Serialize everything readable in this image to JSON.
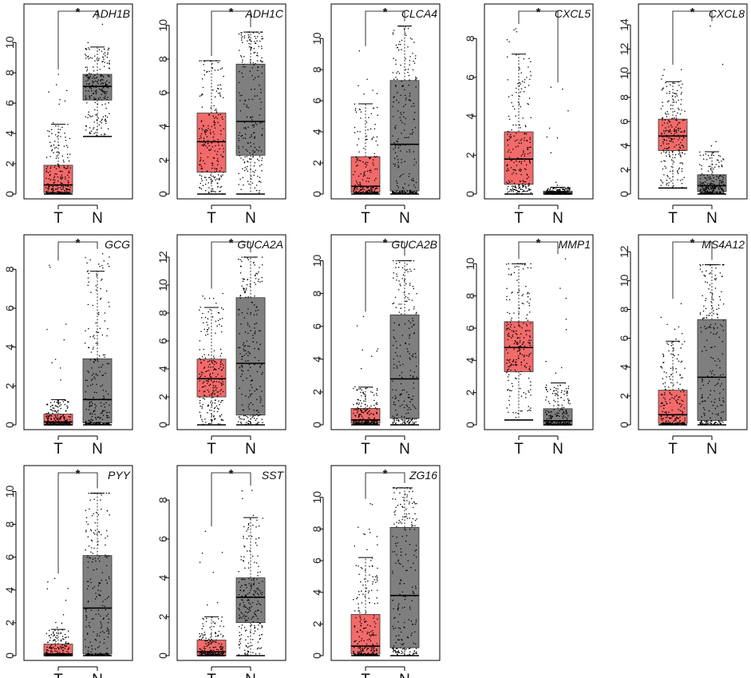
{
  "chart_data": {
    "type": "box",
    "groups": [
      "T",
      "N"
    ],
    "significance_marker": "*",
    "colors": {
      "T": "#f26a6a",
      "N": "#7f7f7f",
      "points": "#000000"
    },
    "panels": [
      {
        "gene": "ADH1B",
        "yticks": [
          0,
          2,
          4,
          6,
          8,
          10
        ],
        "ylim": [
          0,
          11.8
        ],
        "T": {
          "q1": 0.1,
          "median": 0.6,
          "q3": 1.9,
          "whisker_low": 0,
          "whisker_high": 4.6,
          "max": 7.9
        },
        "N": {
          "q1": 6.2,
          "median": 7.1,
          "q3": 7.9,
          "whisker_low": 3.8,
          "whisker_high": 9.7,
          "max": 11.2
        }
      },
      {
        "gene": "ADH1C",
        "yticks": [
          0,
          2,
          4,
          6,
          8,
          10
        ],
        "ylim": [
          0,
          10.6
        ],
        "T": {
          "q1": 1.3,
          "median": 3.1,
          "q3": 4.8,
          "whisker_low": 0,
          "whisker_high": 7.9,
          "max": 7.9
        },
        "N": {
          "q1": 2.3,
          "median": 4.3,
          "q3": 7.7,
          "whisker_low": 0,
          "whisker_high": 9.6,
          "max": 9.6
        }
      },
      {
        "gene": "CLCA4",
        "yticks": [
          0,
          2,
          4,
          6,
          8,
          10
        ],
        "ylim": [
          0,
          11.5
        ],
        "T": {
          "q1": 0.1,
          "median": 0.5,
          "q3": 2.4,
          "whisker_low": 0,
          "whisker_high": 5.8,
          "max": 9.2
        },
        "N": {
          "q1": 0.2,
          "median": 3.2,
          "q3": 7.3,
          "whisker_low": 0,
          "whisker_high": 10.8,
          "max": 10.8
        }
      },
      {
        "gene": "CXCL5",
        "yticks": [
          0,
          2,
          4,
          6,
          8
        ],
        "ylim": [
          0,
          9.2
        ],
        "T": {
          "q1": 0.5,
          "median": 1.8,
          "q3": 3.2,
          "whisker_low": 0,
          "whisker_high": 7.2,
          "max": 8.5
        },
        "N": {
          "q1": 0.0,
          "median": 0.05,
          "q3": 0.15,
          "whisker_low": 0,
          "whisker_high": 0.35,
          "max": 5.5
        }
      },
      {
        "gene": "CXCL8",
        "yticks": [
          0,
          2,
          4,
          6,
          8,
          10,
          12,
          14
        ],
        "ylim": [
          0,
          14.8
        ],
        "T": {
          "q1": 3.6,
          "median": 4.8,
          "q3": 6.2,
          "whisker_low": 0.5,
          "whisker_high": 9.3,
          "max": 10.3
        },
        "N": {
          "q1": 0.2,
          "median": 0.7,
          "q3": 1.6,
          "whisker_low": 0,
          "whisker_high": 3.5,
          "max": 13.9
        }
      },
      {
        "gene": "GCG",
        "yticks": [
          0,
          2,
          4,
          6,
          8
        ],
        "ylim": [
          0,
          9.2
        ],
        "T": {
          "q1": 0.0,
          "median": 0.15,
          "q3": 0.55,
          "whisker_low": 0,
          "whisker_high": 1.3,
          "max": 8.2
        },
        "N": {
          "q1": 0.1,
          "median": 1.3,
          "q3": 3.4,
          "whisker_low": 0,
          "whisker_high": 7.9,
          "max": 8.8
        }
      },
      {
        "gene": "GUCA2A",
        "yticks": [
          0,
          2,
          4,
          6,
          8,
          10,
          12
        ],
        "ylim": [
          0,
          12.8
        ],
        "T": {
          "q1": 2.0,
          "median": 3.3,
          "q3": 4.7,
          "whisker_low": 0,
          "whisker_high": 8.4,
          "max": 9.4
        },
        "N": {
          "q1": 0.7,
          "median": 4.4,
          "q3": 9.1,
          "whisker_low": 0,
          "whisker_high": 12.0,
          "max": 12.0
        }
      },
      {
        "gene": "GUCA2B",
        "yticks": [
          0,
          2,
          4,
          6,
          8,
          10
        ],
        "ylim": [
          0,
          10.9
        ],
        "T": {
          "q1": 0.1,
          "median": 0.3,
          "q3": 1.0,
          "whisker_low": 0,
          "whisker_high": 2.3,
          "max": 6.6
        },
        "N": {
          "q1": 0.4,
          "median": 2.8,
          "q3": 6.7,
          "whisker_low": 0,
          "whisker_high": 10.0,
          "max": 10.0
        }
      },
      {
        "gene": "MMP1",
        "yticks": [
          0,
          2,
          4,
          6,
          8,
          10
        ],
        "ylim": [
          0,
          11.1
        ],
        "T": {
          "q1": 3.3,
          "median": 4.8,
          "q3": 6.4,
          "whisker_low": 0.3,
          "whisker_high": 10.0,
          "max": 10.0
        },
        "N": {
          "q1": 0.0,
          "median": 0.25,
          "q3": 1.0,
          "whisker_low": 0,
          "whisker_high": 2.6,
          "max": 10.3
        }
      },
      {
        "gene": "MS4A12",
        "yticks": [
          0,
          2,
          4,
          6,
          8,
          10,
          12
        ],
        "ylim": [
          0,
          12.4
        ],
        "T": {
          "q1": 0.1,
          "median": 0.7,
          "q3": 2.4,
          "whisker_low": 0,
          "whisker_high": 5.8,
          "max": 8.4
        },
        "N": {
          "q1": 0.3,
          "median": 3.3,
          "q3": 7.3,
          "whisker_low": 0,
          "whisker_high": 11.1,
          "max": 11.1
        }
      },
      {
        "gene": "PYY",
        "yticks": [
          0,
          2,
          4,
          6,
          8,
          10
        ],
        "ylim": [
          0,
          10.9
        ],
        "T": {
          "q1": 0.0,
          "median": 0.1,
          "q3": 0.7,
          "whisker_low": 0,
          "whisker_high": 1.6,
          "max": 4.7
        },
        "N": {
          "q1": 0.1,
          "median": 2.9,
          "q3": 6.1,
          "whisker_low": 0,
          "whisker_high": 9.9,
          "max": 9.9
        }
      },
      {
        "gene": "SST",
        "yticks": [
          0,
          2,
          4,
          6,
          8
        ],
        "ylim": [
          0,
          9.2
        ],
        "T": {
          "q1": 0.0,
          "median": 0.2,
          "q3": 0.8,
          "whisker_low": 0,
          "whisker_high": 2.0,
          "max": 6.4
        },
        "N": {
          "q1": 1.7,
          "median": 3.0,
          "q3": 4.0,
          "whisker_low": 0,
          "whisker_high": 7.1,
          "max": 8.5
        }
      },
      {
        "gene": "ZG16",
        "yticks": [
          0,
          2,
          4,
          6,
          8,
          10
        ],
        "ylim": [
          0,
          11.3
        ],
        "T": {
          "q1": 0.1,
          "median": 0.6,
          "q3": 2.6,
          "whisker_low": 0,
          "whisker_high": 6.2,
          "max": 9.6
        },
        "N": {
          "q1": 0.5,
          "median": 3.8,
          "q3": 8.1,
          "whisker_low": 0,
          "whisker_high": 10.6,
          "max": 10.6
        }
      }
    ]
  }
}
